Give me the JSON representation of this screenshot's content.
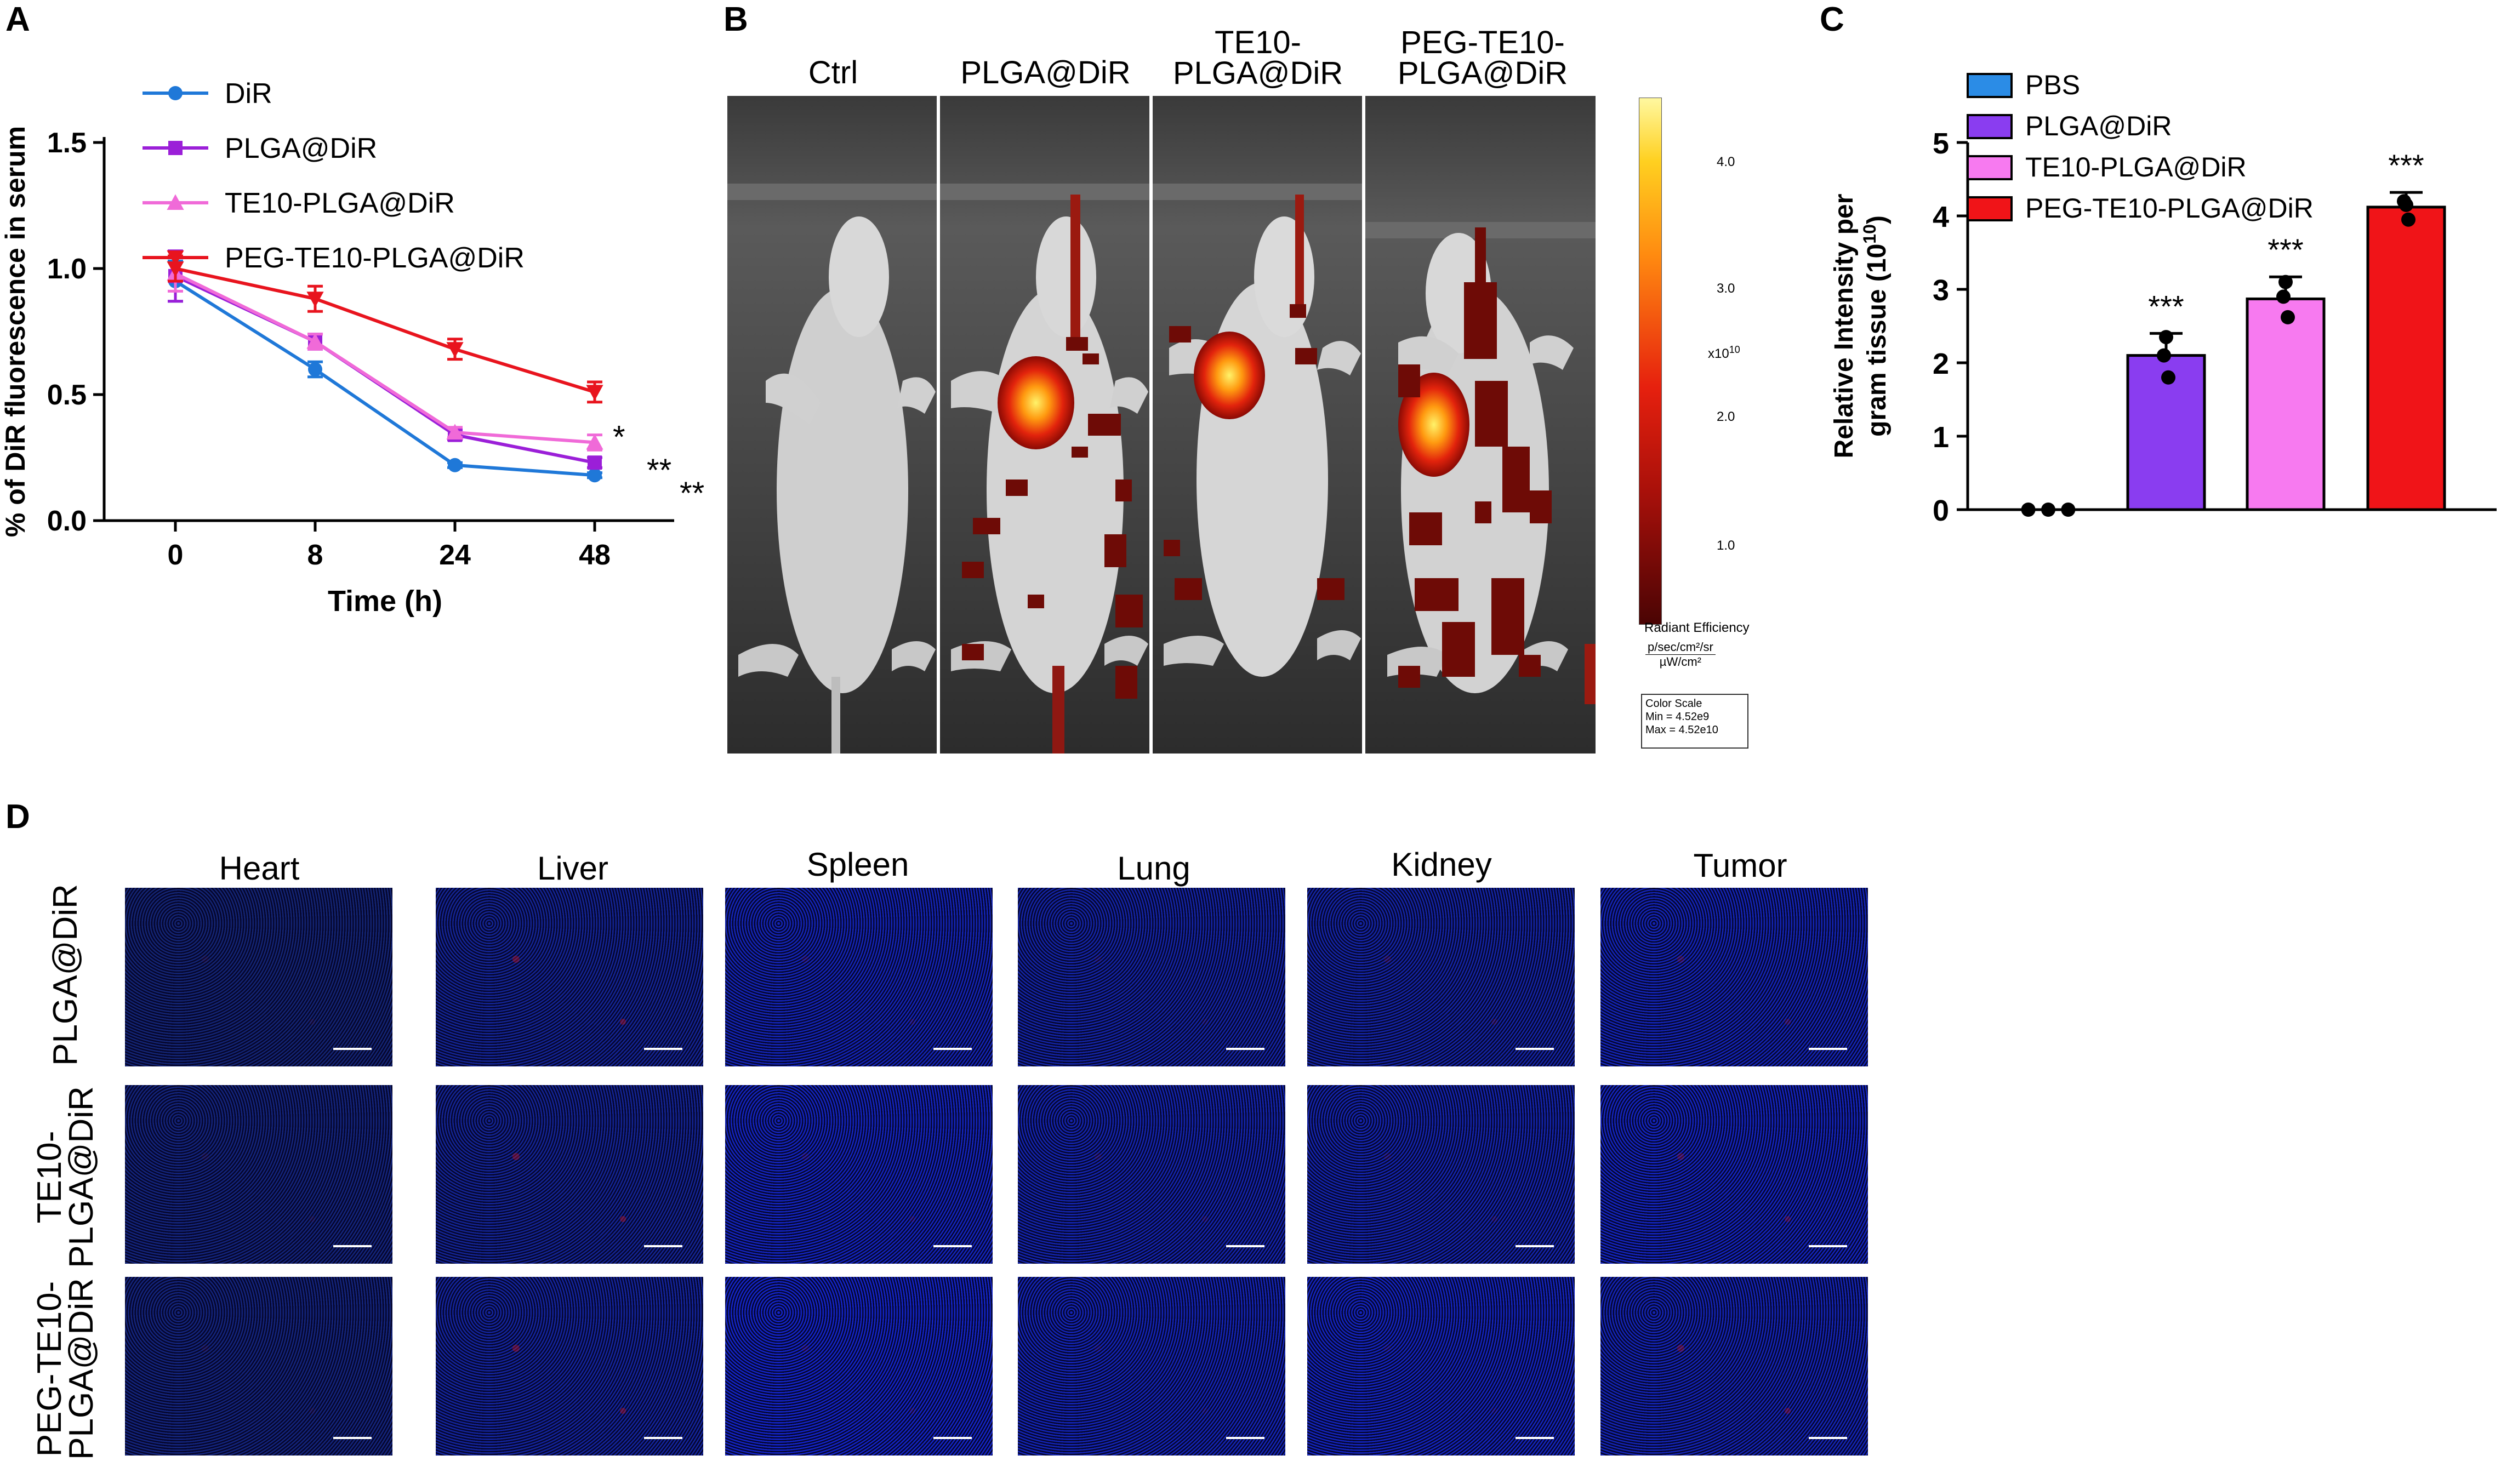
{
  "panels": {
    "A": {
      "label": "A",
      "chart_data": {
        "type": "line",
        "title": "",
        "xlabel": "Time (h)",
        "ylabel": "% of DiR fluorescence in serum",
        "categories": [
          "0",
          "8",
          "24",
          "48"
        ],
        "ylim": [
          0,
          1.5
        ],
        "yticks": [
          "0.0",
          "0.5",
          "1.0",
          "1.5"
        ],
        "legend_position": "top-left",
        "series": [
          {
            "name": "DiR",
            "color": "#1f78d8",
            "marker": "circle",
            "values": [
              0.95,
              0.6,
              0.22,
              0.18
            ],
            "errors": [
              0.08,
              0.03,
              0.01,
              0.01
            ]
          },
          {
            "name": "PLGA@DiR",
            "color": "#9b1fd8",
            "marker": "square",
            "values": [
              0.97,
              0.71,
              0.34,
              0.23
            ],
            "errors": [
              0.1,
              0.03,
              0.02,
              0.02
            ]
          },
          {
            "name": "TE10-PLGA@DiR",
            "color": "#f06ad8",
            "marker": "triangle-up",
            "values": [
              0.98,
              0.71,
              0.35,
              0.31
            ],
            "errors": [
              0.07,
              0.03,
              0.02,
              0.03
            ]
          },
          {
            "name": "PEG-TE10-PLGA@DiR",
            "color": "#e8141e",
            "marker": "triangle-down",
            "values": [
              1.0,
              0.88,
              0.68,
              0.51
            ],
            "errors": [
              0.05,
              0.05,
              0.04,
              0.04
            ]
          }
        ],
        "annotations": [
          "*",
          "**",
          "**"
        ]
      }
    },
    "B": {
      "label": "B",
      "columns": [
        "Ctrl",
        "PLGA@DiR",
        "TE10-\nPLGA@DiR",
        "PEG-TE10-\nPLGA@DiR"
      ],
      "colorbar": {
        "ticks": [
          "4.0",
          "3.0",
          "2.0",
          "1.0"
        ],
        "exponent": "x10",
        "exponent_power": "10",
        "title": "Radiant Efficiency",
        "units_numerator": "p/sec/cm²/sr",
        "units_denominator": "µW/cm²",
        "scale_title": "Color Scale",
        "scale_min": "Min = 4.52e9",
        "scale_max": "Max = 4.52e10"
      }
    },
    "C": {
      "label": "C",
      "chart_data": {
        "type": "bar",
        "title": "",
        "xlabel": "",
        "ylabel_line1": "Relative Intensity per",
        "ylabel_line2": "gram tissue (10",
        "ylabel_power": "10",
        "ylabel_end": ")",
        "categories": [
          "PBS",
          "PLGA@DiR",
          "TE10-PLGA@DiR",
          "PEG-TE10-PLGA@DiR"
        ],
        "ylim": [
          0,
          5
        ],
        "yticks": [
          "0",
          "1",
          "2",
          "3",
          "4",
          "5"
        ],
        "legend_position": "top-left",
        "series": [
          {
            "name": "PBS",
            "color": "#2b8ce6",
            "value": 0.0,
            "error": 0.0,
            "points": [
              0.0,
              0.0,
              0.0
            ]
          },
          {
            "name": "PLGA@DiR",
            "color": "#8a3df0",
            "value": 2.1,
            "error": 0.3,
            "points": [
              2.35,
              2.1,
              1.8
            ]
          },
          {
            "name": "TE10-PLGA@DiR",
            "color": "#f77af0",
            "value": 2.87,
            "error": 0.3,
            "points": [
              3.1,
              2.9,
              2.62
            ]
          },
          {
            "name": "PEG-TE10-PLGA@DiR",
            "color": "#f01418",
            "value": 4.12,
            "error": 0.2,
            "points": [
              4.15,
              4.2,
              3.95
            ]
          }
        ],
        "significance": [
          "",
          "***",
          "***",
          "***"
        ]
      }
    },
    "D": {
      "label": "D",
      "columns": [
        "Heart",
        "Liver",
        "Spleen",
        "Lung",
        "Kidney",
        "Tumor"
      ],
      "rows": [
        "PLGA@DiR",
        "TE10-\nPLGA@DiR",
        "PEG-TE10-\nPLGA@DiR"
      ]
    }
  }
}
